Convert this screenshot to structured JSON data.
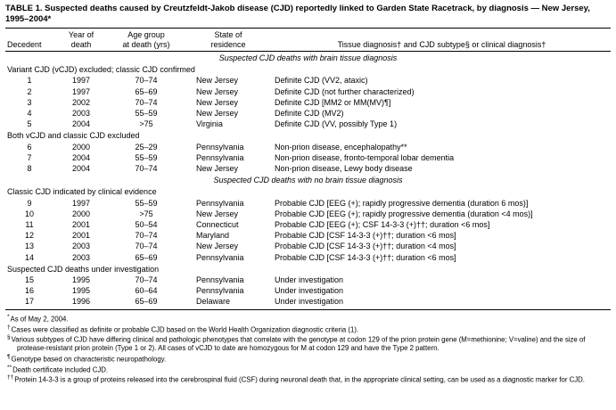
{
  "title": "TABLE 1. Suspected deaths caused by Creutzfeldt-Jakob disease (CJD) reportedly linked to Garden State Racetrack, by diagnosis — New Jersey, 1995–2004*",
  "table": {
    "columns": [
      "Decedent",
      "Year of\ndeath",
      "Age group\nat death (yrs)",
      "State of\nresidence",
      "Tissue diagnosis† and CJD subtype§ or clinical diagnosis†"
    ],
    "sections": [
      {
        "type": "group-title",
        "text": "Suspected CJD deaths with brain tissue diagnosis"
      },
      {
        "type": "subheader",
        "text": "Variant CJD (vCJD) excluded; classic CJD confirmed"
      },
      {
        "type": "row",
        "cells": [
          "1",
          "1997",
          "70–74",
          "New Jersey",
          "Definite CJD (VV2, ataxic)"
        ]
      },
      {
        "type": "row",
        "cells": [
          "2",
          "1997",
          "65–69",
          "New Jersey",
          "Definite CJD (not further characterized)"
        ]
      },
      {
        "type": "row",
        "cells": [
          "3",
          "2002",
          "70–74",
          "New Jersey",
          "Definite CJD [MM2 or MM(MV)¶]"
        ]
      },
      {
        "type": "row",
        "cells": [
          "4",
          "2003",
          "55–59",
          "New Jersey",
          "Definite CJD (MV2)"
        ]
      },
      {
        "type": "row",
        "cells": [
          "5",
          "2004",
          ">75",
          "Virginia",
          "Definite CJD (VV, possibly Type 1)"
        ]
      },
      {
        "type": "subheader",
        "text": "Both vCJD and classic CJD excluded"
      },
      {
        "type": "row",
        "cells": [
          "6",
          "2000",
          "25–29",
          "Pennsylvania",
          "Non-prion disease, encephalopathy**"
        ]
      },
      {
        "type": "row",
        "cells": [
          "7",
          "2004",
          "55–59",
          "Pennsylvania",
          "Non-prion disease, fronto-temporal lobar dementia"
        ]
      },
      {
        "type": "row",
        "cells": [
          "8",
          "2004",
          "70–74",
          "New Jersey",
          "Non-prion disease, Lewy body disease"
        ]
      },
      {
        "type": "group-title",
        "text": "Suspected CJD deaths with no brain tissue diagnosis"
      },
      {
        "type": "subheader",
        "text": "Classic CJD indicated by clinical evidence"
      },
      {
        "type": "row",
        "cells": [
          "9",
          "1997",
          "55–59",
          "Pennsylvania",
          "Probable CJD [EEG (+); rapidly progressive dementia (duration 6 mos)]"
        ]
      },
      {
        "type": "row",
        "cells": [
          "10",
          "2000",
          ">75",
          "New Jersey",
          "Probable CJD [EEG (+); rapidly progressive dementia (duration <4 mos)]"
        ]
      },
      {
        "type": "row",
        "cells": [
          "11",
          "2001",
          "50–54",
          "Connecticut",
          "Probable CJD [EEG (+); CSF 14-3-3 (+)††; duration <6 mos]"
        ]
      },
      {
        "type": "row",
        "cells": [
          "12",
          "2001",
          "70–74",
          "Maryland",
          "Probable CJD [CSF 14-3-3 (+)††; duration <6 mos]"
        ]
      },
      {
        "type": "row",
        "cells": [
          "13",
          "2003",
          "70–74",
          "New Jersey",
          "Probable CJD [CSF 14-3-3 (+)††; duration <4 mos]"
        ]
      },
      {
        "type": "row",
        "cells": [
          "14",
          "2003",
          "65–69",
          "Pennsylvania",
          "Probable CJD [CSF 14-3-3 (+)††; duration <6 mos]"
        ]
      },
      {
        "type": "subheader",
        "text": "Suspected CJD deaths under investigation"
      },
      {
        "type": "row",
        "cells": [
          "15",
          "1995",
          "70–74",
          "Pennsylvania",
          "Under investigation"
        ]
      },
      {
        "type": "row",
        "cells": [
          "16",
          "1995",
          "60–64",
          "Pennsylvania",
          "Under investigation"
        ]
      },
      {
        "type": "row",
        "cells": [
          "17",
          "1996",
          "65–69",
          "Delaware",
          "Under investigation"
        ]
      }
    ]
  },
  "footnotes": [
    {
      "marker": "*",
      "text": "As of May 2, 2004."
    },
    {
      "marker": "†",
      "text": "Cases were classified as definite or probable CJD based on the World Health Organization diagnostic criteria (1)."
    },
    {
      "marker": "§",
      "text": "Various subtypes of CJD have differing clinical and pathologic phenotypes that correlate with the genotype at codon 129 of the prion protein gene (M=methionine; V=valine) and the size of protease-resistant prion protein (Type 1 or 2). All cases of vCJD to date are homozygous for M at codon 129 and have the Type 2 pattern."
    },
    {
      "marker": "¶",
      "text": "Genotype based on characteristic neuropathology."
    },
    {
      "marker": "**",
      "text": "Death certificate included CJD."
    },
    {
      "marker": "††",
      "text": "Protein 14-3-3 is a group of proteins released into the cerebrospinal fluid (CSF) during neuronal death that, in the appropriate clinical setting, can be used as a diagnostic marker for CJD."
    }
  ]
}
